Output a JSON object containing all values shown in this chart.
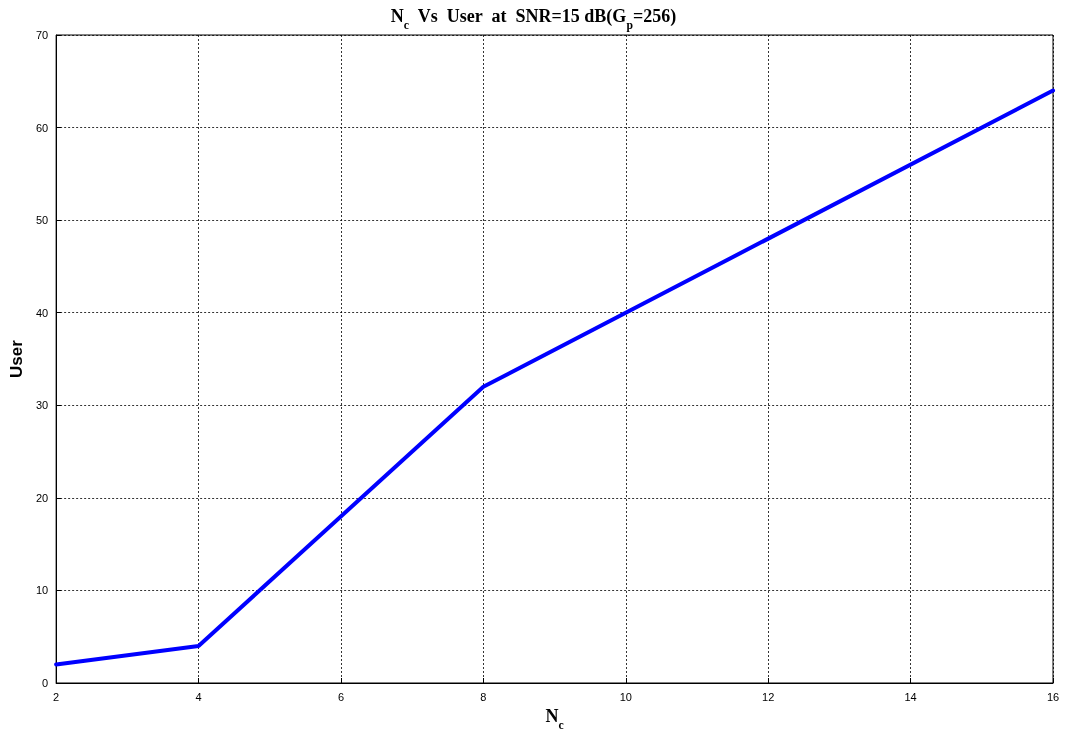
{
  "chart_data": {
    "type": "line",
    "title": "N$_{c}$  Vs  User  at  SNR=15 dB(G$_{p}$=256)",
    "xlabel": "N$_{c}$",
    "ylabel": "User",
    "x": [
      2,
      4,
      8,
      16
    ],
    "series": [
      {
        "color": "#0000ff",
        "values": [
          2,
          4,
          32,
          64
        ]
      }
    ],
    "xlim": [
      2,
      16
    ],
    "xticks": [
      2,
      4,
      6,
      8,
      10,
      12,
      14,
      16
    ],
    "ylim": [
      0,
      70
    ],
    "yticks": [
      0,
      10,
      20,
      30,
      40,
      50,
      60,
      70
    ],
    "grid": true,
    "marker": "none",
    "line_style": "solid"
  }
}
